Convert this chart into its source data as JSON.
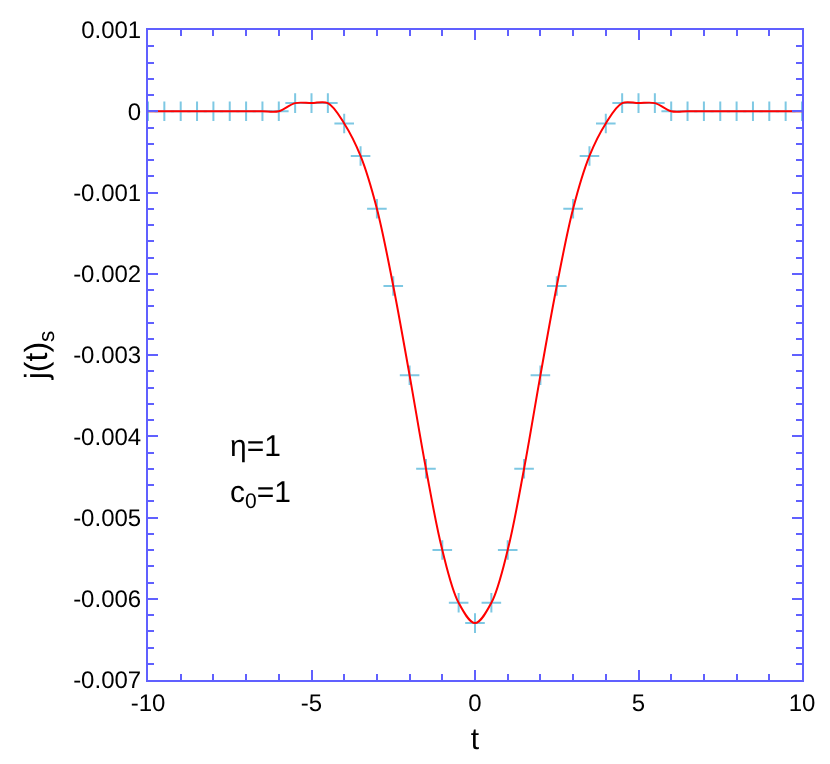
{
  "chart_data": {
    "type": "line",
    "xlabel": "t",
    "ylabel": "j(t)$_{s}$",
    "annotations": [
      "η=1",
      "c$_{0}$=1"
    ],
    "x": [
      -10,
      -9.5,
      -9,
      -8.5,
      -8,
      -7.5,
      -7,
      -6.5,
      -6,
      -5.5,
      -5,
      -4.5,
      -4,
      -3.5,
      -3,
      -2.5,
      -2,
      -1.5,
      -1,
      -0.5,
      0,
      0.5,
      1,
      1.5,
      2,
      2.5,
      3,
      3.5,
      4,
      4.5,
      5,
      5.5,
      6,
      6.5,
      7,
      7.5,
      8,
      8.5,
      9,
      9.5,
      10
    ],
    "series": [
      {
        "type": "scatter",
        "color": "#7ec8e3",
        "marker": "cross",
        "values": [
          0,
          0,
          0,
          0,
          0,
          0,
          0,
          0,
          0,
          0.0001,
          0.0001,
          0.0001,
          -0.00015,
          -0.00055,
          -0.0012,
          -0.00215,
          -0.00325,
          -0.0044,
          -0.0054,
          -0.00605,
          -0.0063,
          -0.00605,
          -0.0054,
          -0.0044,
          -0.00325,
          -0.00215,
          -0.0012,
          -0.00055,
          -0.00015,
          0.0001,
          0.0001,
          0.0001,
          0,
          0,
          0,
          0,
          0,
          0,
          0,
          0,
          0
        ]
      },
      {
        "color": "#ff0000",
        "marker": "none",
        "values": [
          0,
          0,
          0,
          0,
          0,
          0,
          0,
          0,
          0,
          0.0001,
          0.0001,
          0.0001,
          -0.00015,
          -0.00055,
          -0.0012,
          -0.00215,
          -0.00325,
          -0.0044,
          -0.0054,
          -0.00605,
          -0.0063,
          -0.00605,
          -0.0054,
          -0.0044,
          -0.00325,
          -0.00215,
          -0.0012,
          -0.00055,
          -0.00015,
          0.0001,
          0.0001,
          0.0001,
          0,
          0,
          0,
          0,
          0,
          0,
          0,
          0,
          0
        ]
      }
    ],
    "xlim": [
      -10,
      10
    ],
    "xticks": [
      -10,
      -5,
      0,
      5,
      10
    ],
    "ylim": [
      -0.007,
      0.001
    ],
    "yticks": [
      -0.007,
      -0.006,
      -0.005,
      -0.004,
      -0.003,
      -0.002,
      -0.001,
      0,
      0.001
    ]
  }
}
